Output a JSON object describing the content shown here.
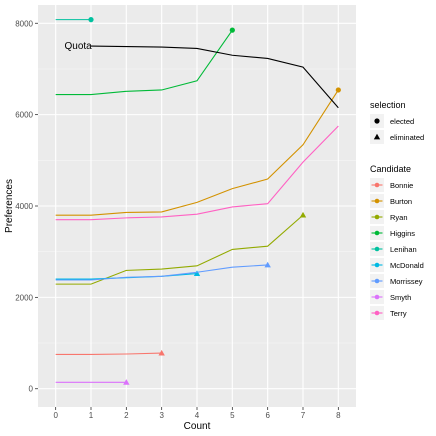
{
  "chart_data": {
    "type": "line",
    "xlabel": "Count",
    "ylabel": "Preferences",
    "xlim": [
      -0.5,
      8.5
    ],
    "ylim": [
      -400,
      8400
    ],
    "x_ticks": [
      0,
      1,
      2,
      3,
      4,
      5,
      6,
      7,
      8
    ],
    "y_ticks": [
      0,
      2000,
      4000,
      6000,
      8000
    ],
    "grid": true,
    "annotation": {
      "text": "Quota"
    },
    "quota": {
      "x": [
        1,
        2,
        3,
        4,
        5,
        6,
        7,
        8
      ],
      "values": [
        7500,
        7490,
        7480,
        7450,
        7300,
        7230,
        7040,
        6150
      ]
    },
    "series": [
      {
        "name": "Bonnie",
        "color": "#F8766D",
        "x": [
          0,
          1,
          2,
          3
        ],
        "values": [
          750,
          750,
          760,
          780
        ],
        "end": "eliminated"
      },
      {
        "name": "Burton",
        "color": "#D39200",
        "x": [
          0,
          1,
          2,
          3,
          4,
          5,
          6,
          7,
          8
        ],
        "values": [
          3800,
          3800,
          3860,
          3870,
          4080,
          4380,
          4590,
          5340,
          6540
        ],
        "end": "elected"
      },
      {
        "name": "Ryan",
        "color": "#93AA00",
        "x": [
          0,
          1,
          2,
          3,
          4,
          5,
          6,
          7
        ],
        "values": [
          2290,
          2290,
          2590,
          2620,
          2690,
          3050,
          3120,
          3800
        ],
        "end": "eliminated"
      },
      {
        "name": "Higgins",
        "color": "#00BA38",
        "x": [
          0,
          1,
          2,
          3,
          4,
          5
        ],
        "values": [
          6440,
          6440,
          6510,
          6540,
          6740,
          7850
        ],
        "end": "elected"
      },
      {
        "name": "Lenihan",
        "color": "#00C19F",
        "x": [
          0,
          1
        ],
        "values": [
          8080,
          8080
        ],
        "end": "elected"
      },
      {
        "name": "McDonald",
        "color": "#00B9E3",
        "x": [
          0,
          1,
          2,
          3,
          4
        ],
        "values": [
          2400,
          2400,
          2430,
          2460,
          2520
        ],
        "end": "eliminated"
      },
      {
        "name": "Morrissey",
        "color": "#619CFF",
        "x": [
          0,
          1,
          2,
          3,
          4,
          5,
          6
        ],
        "values": [
          2380,
          2380,
          2440,
          2460,
          2550,
          2660,
          2710
        ],
        "end": "eliminated"
      },
      {
        "name": "Smyth",
        "color": "#DB72FB",
        "x": [
          0,
          1,
          2
        ],
        "values": [
          140,
          140,
          140
        ],
        "end": "eliminated"
      },
      {
        "name": "Terry",
        "color": "#FF61C3",
        "x": [
          0,
          1,
          2,
          3,
          4,
          5,
          6,
          7,
          8
        ],
        "values": [
          3700,
          3700,
          3740,
          3760,
          3820,
          3980,
          4050,
          4960,
          5750
        ],
        "end": "none"
      }
    ],
    "legend": {
      "selection_title": "selection",
      "selection_items": [
        {
          "label": "elected",
          "shape": "circle"
        },
        {
          "label": "eliminated",
          "shape": "triangle"
        }
      ],
      "candidate_title": "Candidate",
      "placement": "right"
    }
  }
}
